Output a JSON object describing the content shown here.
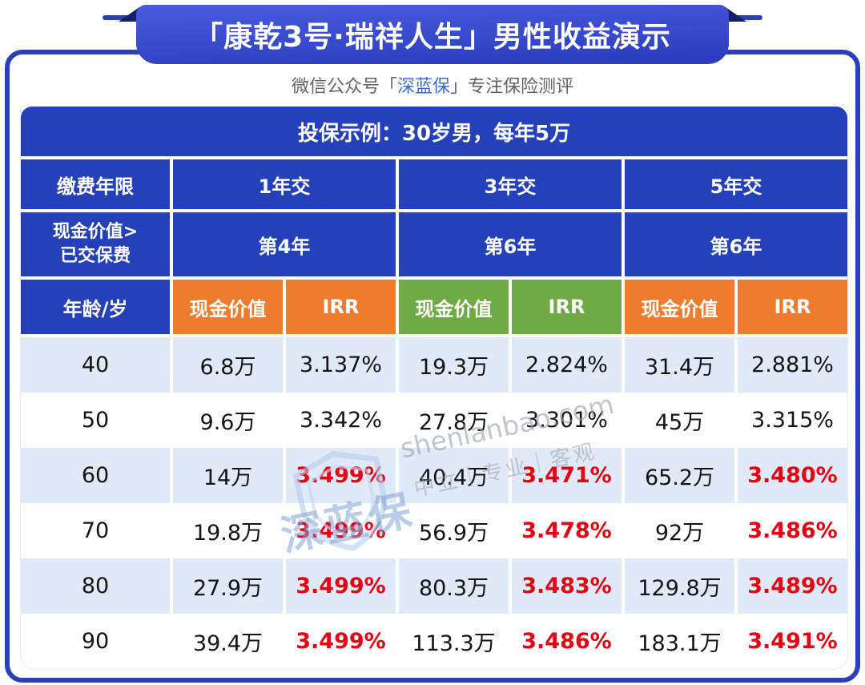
{
  "banner": {
    "title": "「康乾3号·瑞祥人生」男性收益演示"
  },
  "subtitle": {
    "prefix": "微信公众号",
    "bracket_open": "「",
    "brand": "深蓝保",
    "bracket_close": "」",
    "suffix": "专注保险测评"
  },
  "watermark": {
    "brand": "深蓝保",
    "domain": "shenlanbao.com",
    "slogan": "中立｜专业｜客观",
    "shield_icon": "shield-outline-icon"
  },
  "colors": {
    "table_blue": "#2441ba",
    "frame_blue": "#2c3fbb",
    "orange": "#ee7c2f",
    "green": "#6faa45",
    "red_irr": "#e60012",
    "light_row": "#dfe9f7",
    "brand_blue": "#3a6bd8"
  },
  "chart_data": {
    "type": "table",
    "title": "「康乾3号·瑞祥人生」男性收益演示",
    "subtitle": "微信公众号「深蓝保」专注保险测评",
    "example": "投保示例：30岁男，每年5万",
    "payment_label": "缴费年限",
    "payment_terms": [
      "1年交",
      "3年交",
      "5年交"
    ],
    "breakeven_label_line1": "现金价值>",
    "breakeven_label_line2": "已交保费",
    "breakeven_years": [
      "第4年",
      "第6年",
      "第6年"
    ],
    "age_label": "年龄/岁",
    "subcolumns": [
      {
        "cash": "现金价值",
        "irr": "IRR",
        "color": "#ee7c2f"
      },
      {
        "cash": "现金价值",
        "irr": "IRR",
        "color": "#6faa45"
      },
      {
        "cash": "现金价值",
        "irr": "IRR",
        "color": "#ee7c2f"
      }
    ],
    "rows": [
      {
        "age": "40",
        "values": [
          "6.8万",
          "3.137%",
          "19.3万",
          "2.824%",
          "31.4万",
          "2.881%"
        ],
        "irr_red": false
      },
      {
        "age": "50",
        "values": [
          "9.6万",
          "3.342%",
          "27.8万",
          "3.301%",
          "45万",
          "3.315%"
        ],
        "irr_red": false
      },
      {
        "age": "60",
        "values": [
          "14万",
          "3.499%",
          "40.4万",
          "3.471%",
          "65.2万",
          "3.480%"
        ],
        "irr_red": true
      },
      {
        "age": "70",
        "values": [
          "19.8万",
          "3.499%",
          "56.9万",
          "3.478%",
          "92万",
          "3.486%"
        ],
        "irr_red": true
      },
      {
        "age": "80",
        "values": [
          "27.9万",
          "3.499%",
          "80.3万",
          "3.483%",
          "129.8万",
          "3.489%"
        ],
        "irr_red": true
      },
      {
        "age": "90",
        "values": [
          "39.4万",
          "3.499%",
          "113.3万",
          "3.486%",
          "183.1万",
          "3.491%"
        ],
        "irr_red": true
      }
    ]
  }
}
